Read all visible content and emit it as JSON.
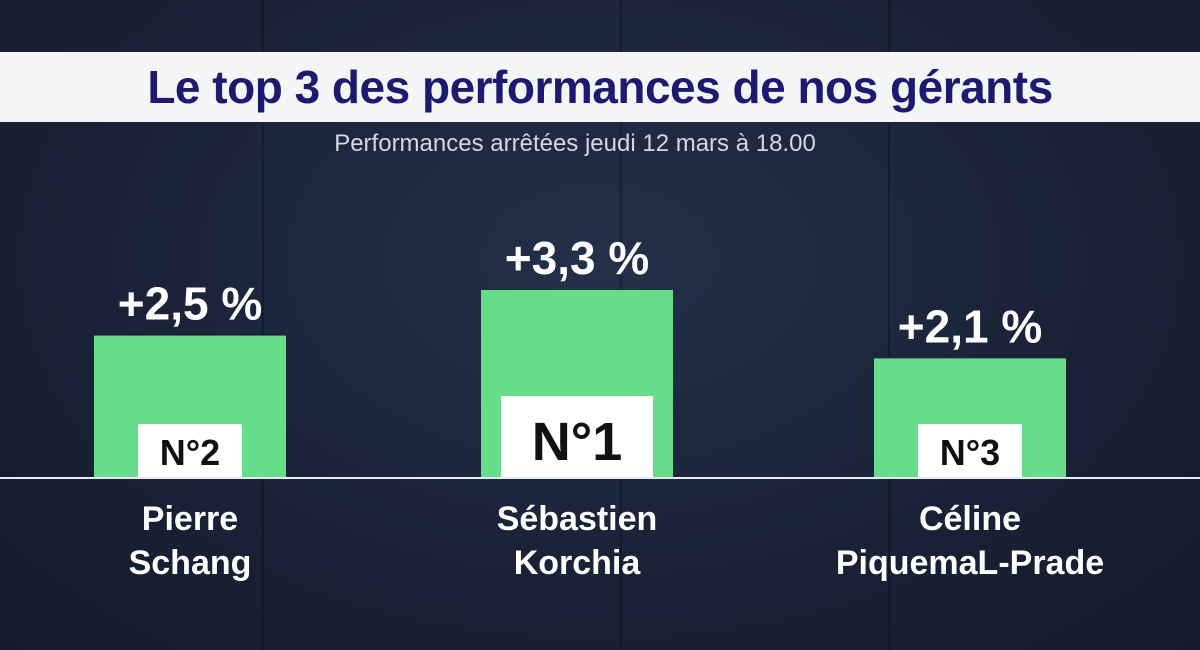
{
  "title": "Le top 3 des performances de nos gérants",
  "subtitle": "Performances arrêtées jeudi 12 mars à 18.00",
  "chart_data": {
    "type": "bar",
    "categories": [
      "Pierre Schang",
      "Sébastien Korchia",
      "Céline PiquemaL-Prade"
    ],
    "values": [
      2.5,
      3.3,
      2.1
    ],
    "value_labels": [
      "+2,5 %",
      "+3,3 %",
      "+2,1 %"
    ],
    "ranks": [
      "N°2",
      "N°1",
      "N°3"
    ],
    "name_lines": [
      [
        "Pierre",
        "Schang"
      ],
      [
        "Sébastien",
        "Korchia"
      ],
      [
        "Céline",
        "PiquemaL-Prade"
      ]
    ],
    "title": "Le top 3 des performances de nos gérants",
    "xlabel": "",
    "ylabel": "",
    "ylim": [
      0,
      3.3
    ],
    "grid": false,
    "bar_color": "#66dd88"
  }
}
